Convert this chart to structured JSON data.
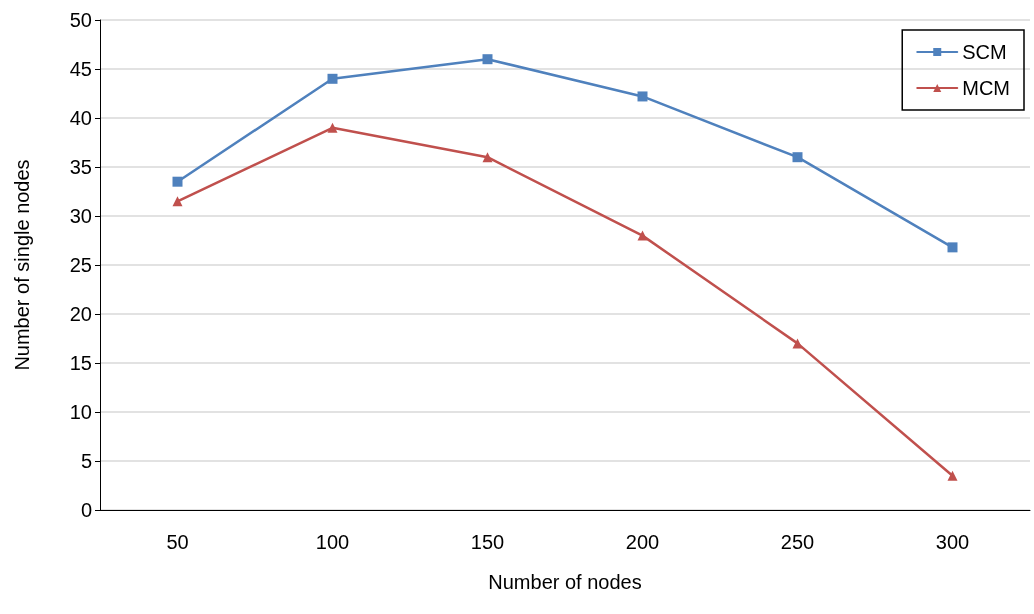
{
  "chart_data": {
    "type": "line",
    "xlabel": "Number of nodes",
    "ylabel": "Number of single nodes",
    "categories": [
      "50",
      "100",
      "150",
      "200",
      "250",
      "300"
    ],
    "series": [
      {
        "name": "SCM",
        "color": "#4f81bd",
        "marker": "square",
        "values": [
          33.5,
          44,
          46,
          42.2,
          36,
          26.8
        ]
      },
      {
        "name": "MCM",
        "color": "#c0504d",
        "marker": "triangle",
        "values": [
          31.5,
          39,
          36,
          28,
          17,
          3.5
        ]
      }
    ],
    "ylim": [
      0,
      50
    ],
    "yticks": [
      0,
      5,
      10,
      15,
      20,
      25,
      30,
      35,
      40,
      45,
      50
    ],
    "grid": "y",
    "legend": "top right",
    "line_style": "solid"
  }
}
